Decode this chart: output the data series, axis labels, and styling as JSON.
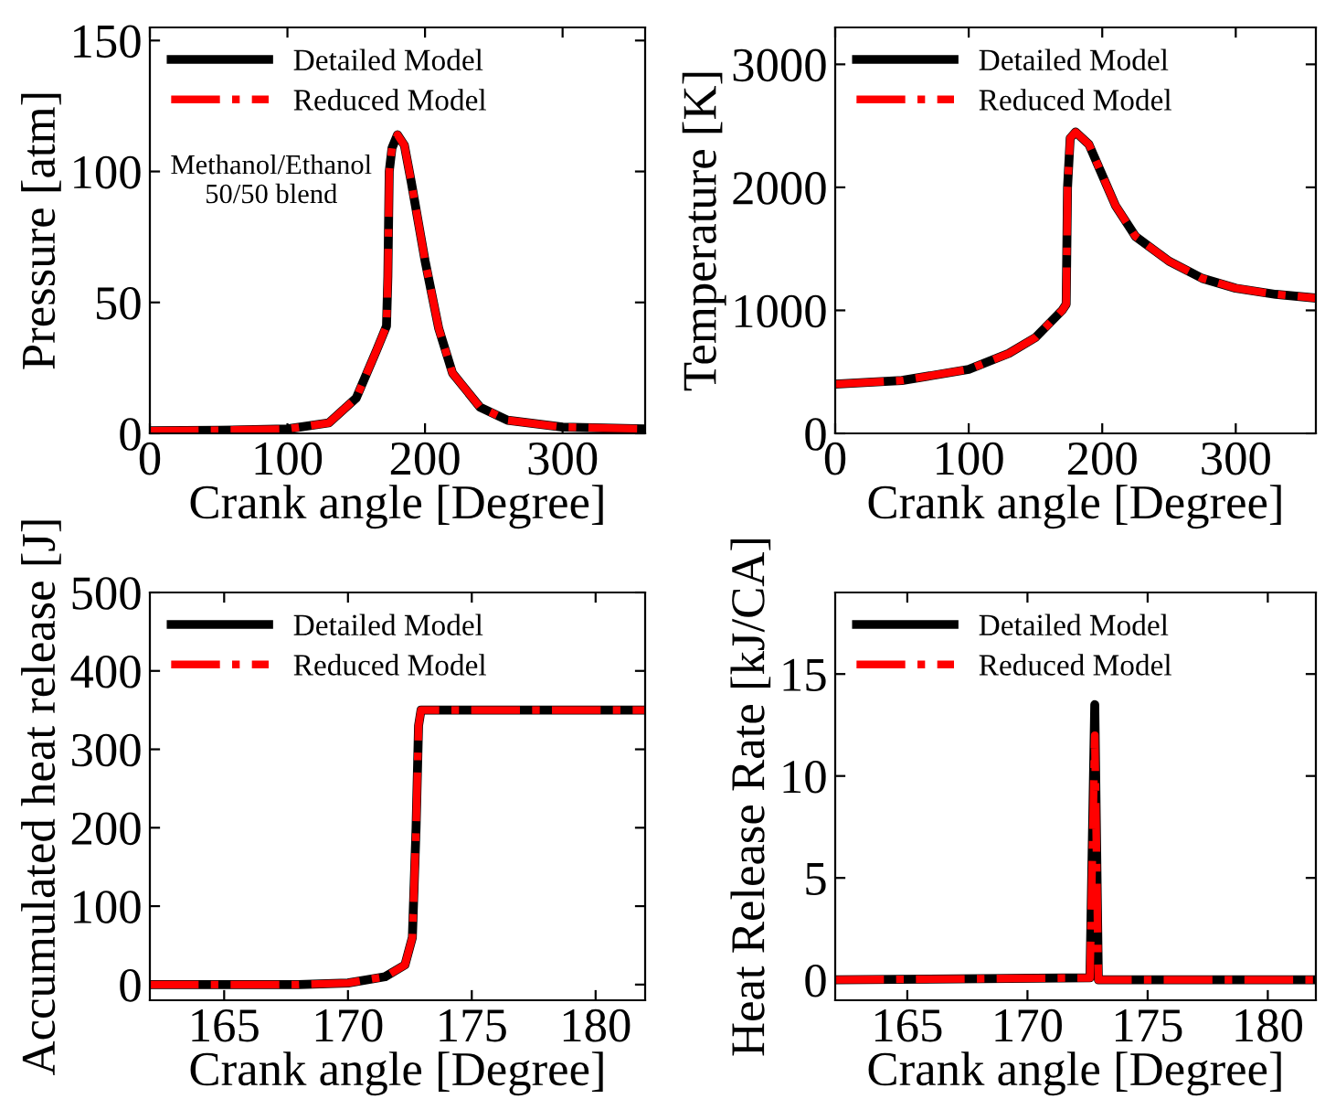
{
  "chart_data": [
    {
      "type": "line",
      "xlabel": "Crank angle [Degree]",
      "ylabel": "Pressure [atm]",
      "xlim": [
        0,
        360
      ],
      "xticks": [
        0,
        100,
        200,
        300
      ],
      "ylim": [
        0,
        155
      ],
      "yticks": [
        0,
        50,
        100,
        150
      ],
      "legend": "top left",
      "grid": false,
      "annotations": [
        "Methanol/Ethanol\n50/50 blend"
      ],
      "x": [
        0,
        50,
        100,
        130,
        150,
        165,
        172,
        173,
        174,
        176,
        180,
        185,
        190,
        200,
        210,
        220,
        240,
        260,
        300,
        360
      ],
      "series": [
        {
          "name": "Detailed Model",
          "color": "#000000",
          "line_style": "solid",
          "values": [
            1,
            1.2,
            1.7,
            4,
            13.5,
            32,
            41,
            60,
            100,
            109,
            114,
            110,
            96,
            66,
            40,
            23,
            10,
            5,
            2.4,
            1.7
          ]
        },
        {
          "name": "Reduced Model",
          "color": "#ff0000",
          "line_style": "dashdot",
          "values": [
            1,
            1.2,
            1.7,
            4,
            13.5,
            32,
            41,
            60,
            100,
            109,
            114,
            110,
            96,
            66,
            40,
            23,
            10,
            5,
            2.4,
            1.7
          ]
        }
      ]
    },
    {
      "type": "line",
      "xlabel": "Crank angle [Degree]",
      "ylabel": "Temperature [K]",
      "xlim": [
        0,
        360
      ],
      "xticks": [
        0,
        100,
        200,
        300
      ],
      "ylim": [
        0,
        3300
      ],
      "yticks": [
        0,
        1000,
        2000,
        3000
      ],
      "legend": "top left",
      "grid": false,
      "x": [
        0,
        50,
        100,
        130,
        150,
        170,
        173,
        174,
        176,
        180,
        190,
        200,
        210,
        225,
        250,
        275,
        300,
        330,
        360
      ],
      "series": [
        {
          "name": "Detailed Model",
          "color": "#000000",
          "line_style": "solid",
          "values": [
            400,
            430,
            520,
            650,
            780,
            1000,
            1050,
            2000,
            2400,
            2450,
            2350,
            2100,
            1850,
            1600,
            1400,
            1260,
            1180,
            1130,
            1100
          ]
        },
        {
          "name": "Reduced Model",
          "color": "#ff0000",
          "line_style": "dashdot",
          "values": [
            400,
            430,
            520,
            650,
            780,
            1000,
            1050,
            2000,
            2400,
            2450,
            2350,
            2100,
            1850,
            1600,
            1400,
            1260,
            1180,
            1130,
            1100
          ]
        }
      ]
    },
    {
      "type": "line",
      "xlabel": "Crank angle [Degree]",
      "ylabel": "Accumulated heat release [J]",
      "xlim": [
        162,
        182
      ],
      "xticks": [
        165,
        170,
        175,
        180
      ],
      "ylim": [
        -20,
        500
      ],
      "yticks": [
        0,
        100,
        200,
        300,
        400,
        500
      ],
      "legend": "top left",
      "grid": false,
      "x": [
        162,
        168,
        170,
        171.5,
        172.3,
        172.6,
        172.75,
        172.85,
        172.95,
        182
      ],
      "series": [
        {
          "name": "Detailed Model",
          "color": "#000000",
          "line_style": "solid",
          "values": [
            0,
            0,
            2,
            10,
            25,
            60,
            200,
            330,
            350,
            350
          ]
        },
        {
          "name": "Reduced Model",
          "color": "#ff0000",
          "line_style": "dashdot",
          "values": [
            0,
            0,
            2,
            10,
            25,
            60,
            200,
            330,
            350,
            350
          ]
        }
      ]
    },
    {
      "type": "line",
      "xlabel": "Crank angle [Degree]",
      "ylabel": "Heat Release Rate [kJ/CA]",
      "xlim": [
        162,
        182
      ],
      "xticks": [
        165,
        170,
        175,
        180
      ],
      "ylim": [
        -1,
        19
      ],
      "yticks": [
        0,
        5,
        10,
        15
      ],
      "legend": "top left",
      "grid": false,
      "x": [
        162,
        172.6,
        172.8,
        172.95,
        182
      ],
      "series": [
        {
          "name": "Detailed Model",
          "color": "#000000",
          "line_style": "solid",
          "values": [
            0,
            0.1,
            13.5,
            0,
            0
          ]
        },
        {
          "name": "Reduced Model",
          "color": "#ff0000",
          "line_style": "dashdot",
          "values": [
            0,
            0.1,
            12,
            0,
            0
          ]
        }
      ]
    }
  ]
}
